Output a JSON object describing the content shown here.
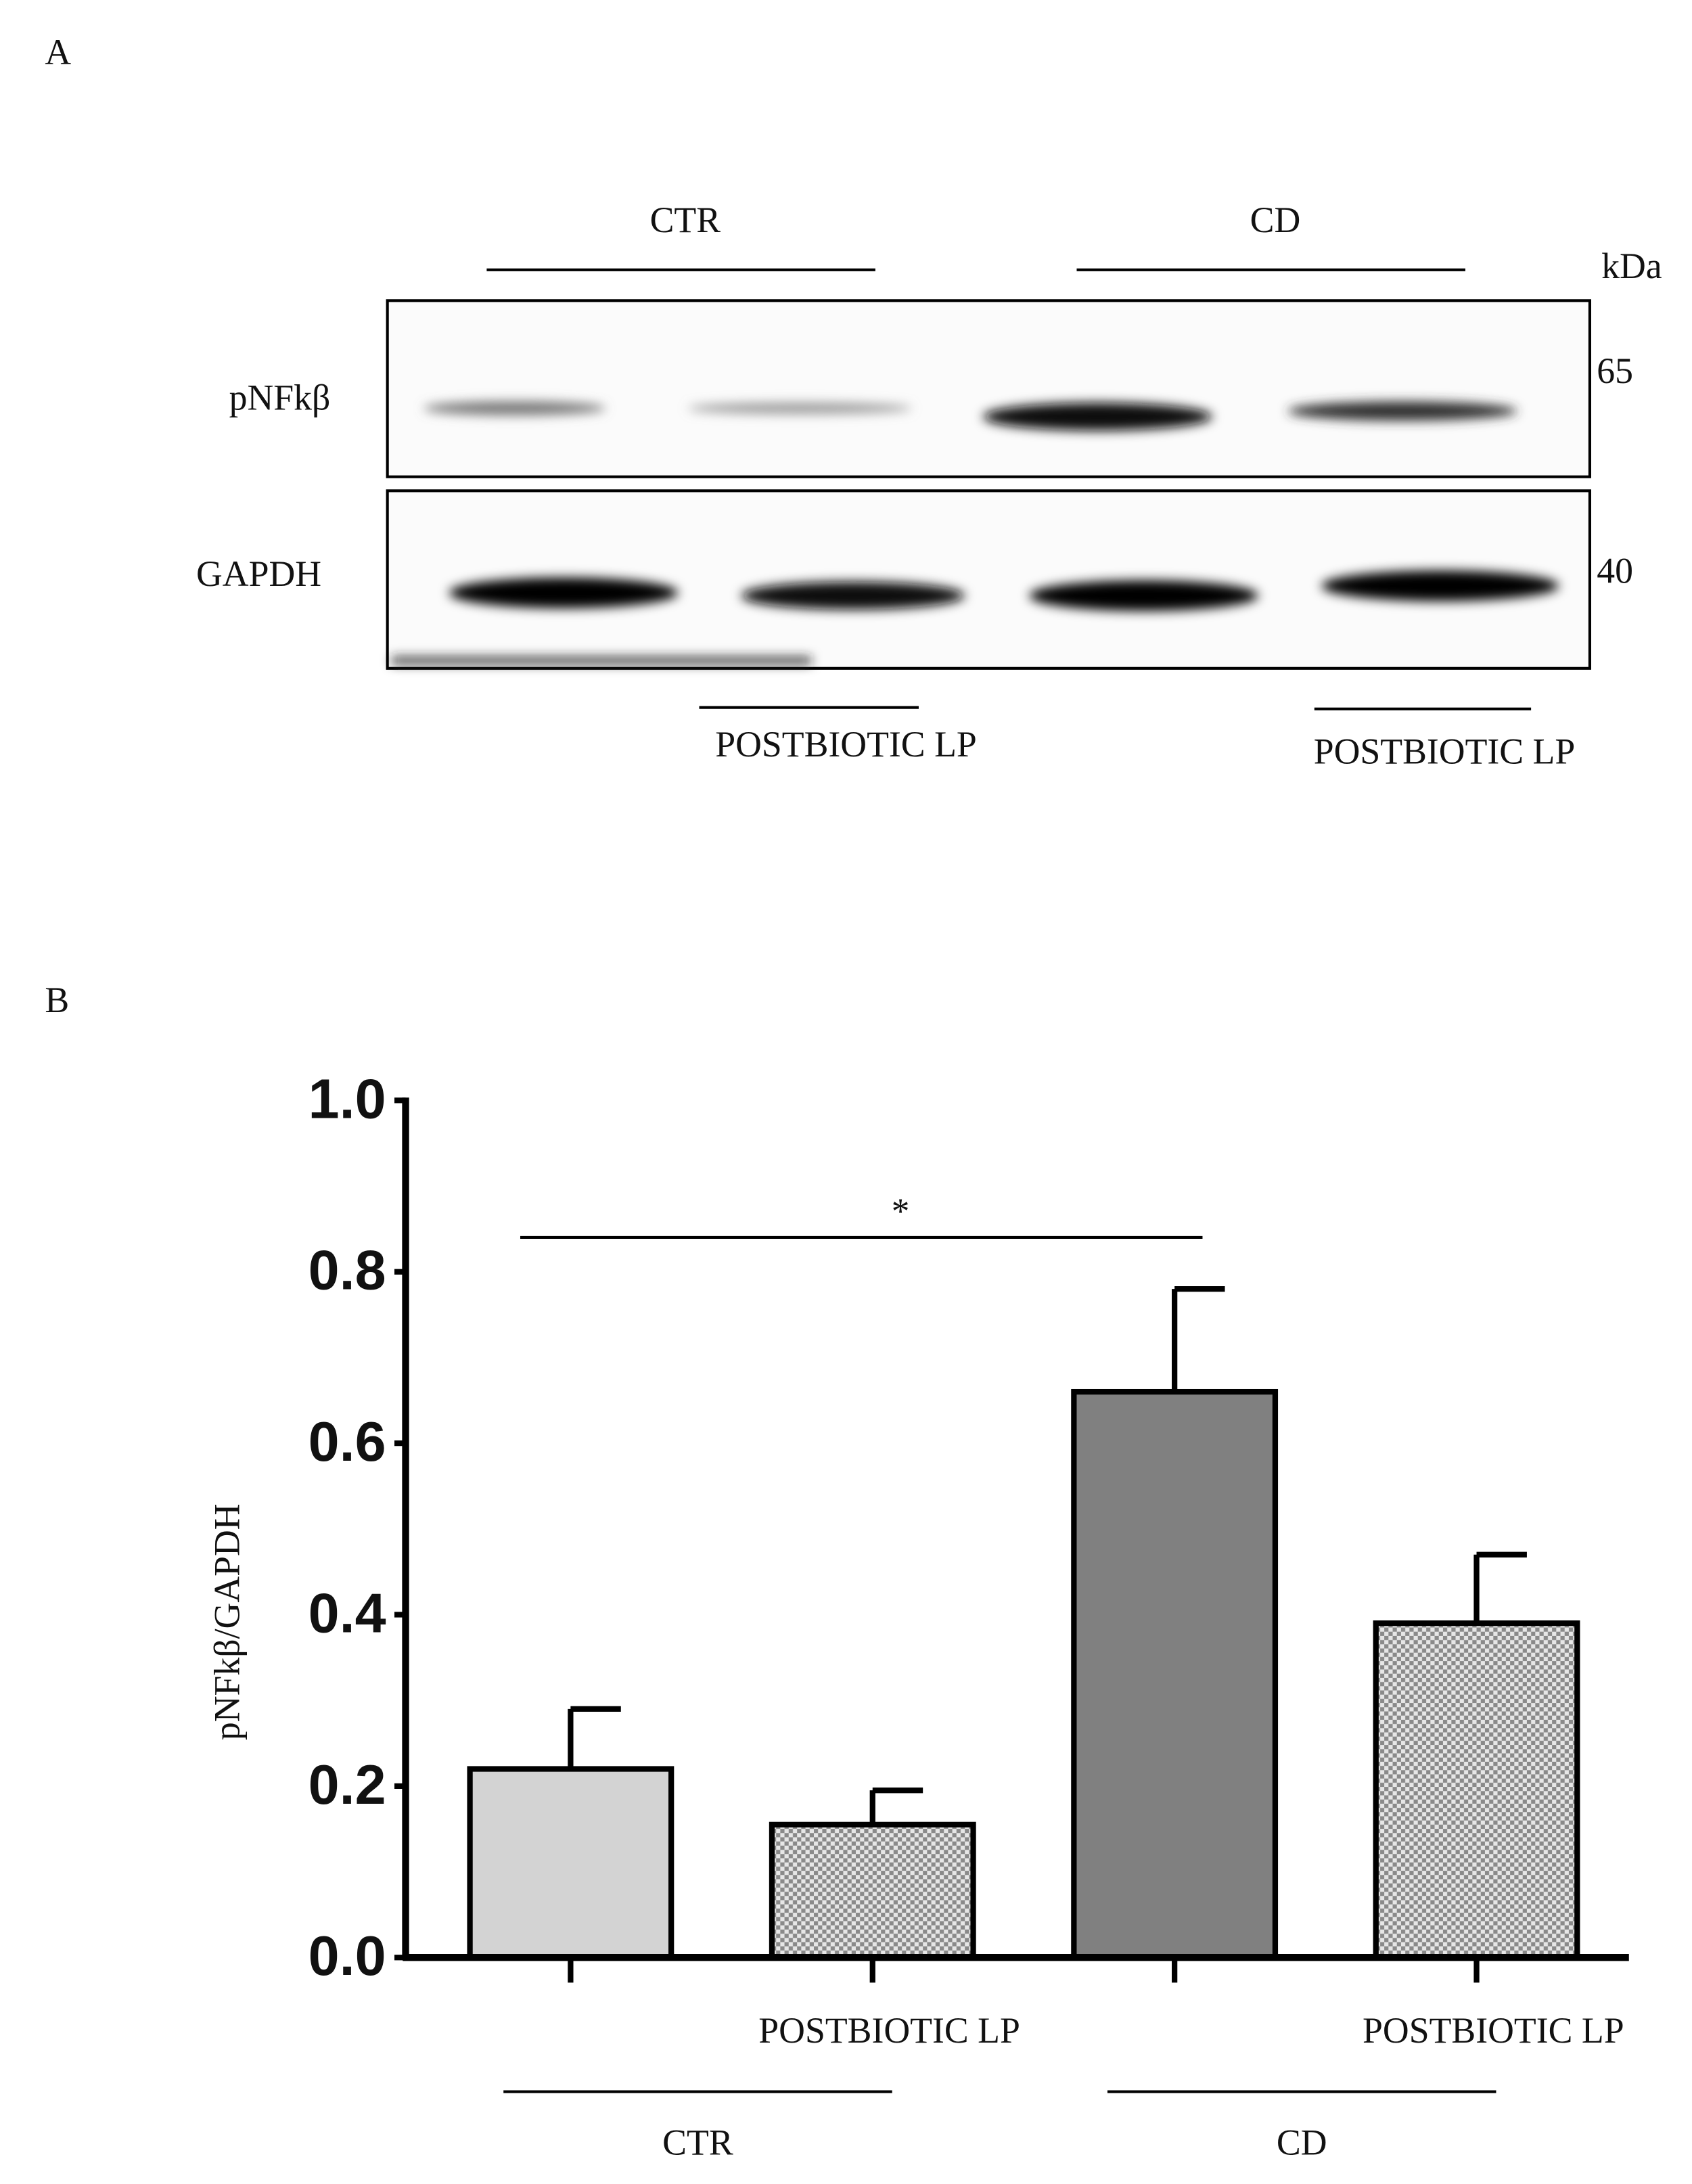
{
  "panel_labels": [
    "A",
    "B"
  ],
  "blot": {
    "groups": [
      "CTR",
      "CD"
    ],
    "unit": "kDa",
    "rows": [
      {
        "label": "pNFkβ",
        "kda": 65
      },
      {
        "label": "GAPDH",
        "kda": 40
      }
    ],
    "treatment_labels": [
      "POSTBIOTIC LP",
      "POSTBIOTIC LP"
    ]
  },
  "chart_data": {
    "type": "bar",
    "y_label": "pNFkβ/GAPDH",
    "categories": [
      null,
      "POSTBIOTIC LP",
      null,
      "POSTBIOTIC LP"
    ],
    "groups": [
      "CTR",
      "CD"
    ],
    "values": [
      0.22,
      0.155,
      0.66,
      0.39
    ],
    "errors": [
      0.07,
      0.04,
      0.12,
      0.08
    ],
    "colors": [
      "#d3d3d3",
      "#c4c4c4",
      "#808080",
      "#9c9c9c"
    ],
    "checkered": [
      false,
      true,
      false,
      true
    ],
    "significance": "*",
    "ylim": [
      0,
      1
    ],
    "yticks": [
      {
        "value": 0,
        "label": "0.0"
      },
      0.2,
      0.4,
      0.6,
      0.8,
      {
        "value": 1,
        "label": "1.0"
      }
    ]
  }
}
